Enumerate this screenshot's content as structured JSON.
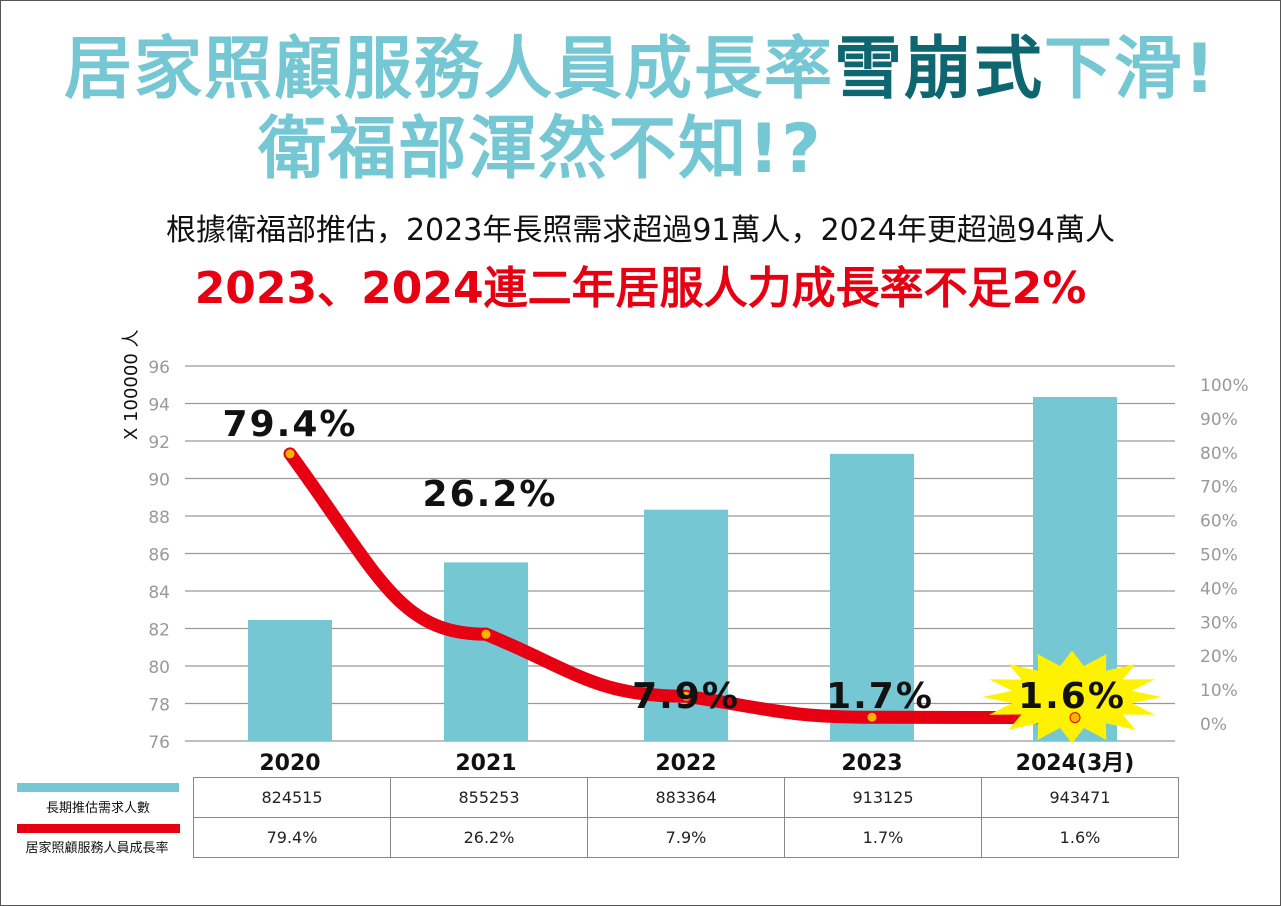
{
  "title": {
    "line1_a": "居家照顧服務人員成長率",
    "line1_b": "雪崩式",
    "line1_c": "下滑!",
    "line2": "衛福部渾然不知!?"
  },
  "subtitle": "根據衛福部推估，2023年長照需求超過91萬人，2024年更超過94萬人",
  "headline": "2023、2024連二年居服人力成長率不足2%",
  "colors": {
    "title": "#74c7d3",
    "title_accent": "#0e6670",
    "bar": "#74c7d3",
    "line": "#e60012",
    "headline": "#e60012",
    "highlight": "#fff200"
  },
  "chart_data": {
    "type": "bar+line",
    "categories": [
      "2020",
      "2021",
      "2022",
      "2023",
      "2024(3月)"
    ],
    "ylabel": "X 100000 人",
    "ylim": [
      76,
      96
    ],
    "yticks": [
      "76",
      "78",
      "80",
      "82",
      "84",
      "86",
      "88",
      "90",
      "92",
      "94",
      "96"
    ],
    "y2lim": [
      0,
      100
    ],
    "y2ticks": [
      "0%",
      "10%",
      "20%",
      "30%",
      "40%",
      "50%",
      "60%",
      "70%",
      "80%",
      "90%",
      "100%"
    ],
    "grid": true,
    "series": [
      {
        "name": "長期推估需求人數",
        "type": "bar",
        "values": [
          824515,
          855253,
          883364,
          913125,
          943471
        ]
      },
      {
        "name": "居家照顧服務人員成長率",
        "type": "line",
        "axis": "right",
        "values": [
          79.4,
          26.2,
          7.9,
          1.7,
          1.6
        ],
        "labels": [
          "79.4%",
          "26.2%",
          "7.9%",
          "1.7%",
          "1.6%"
        ]
      }
    ],
    "highlight": "2024(3月)",
    "legend": "bottom-left table"
  }
}
